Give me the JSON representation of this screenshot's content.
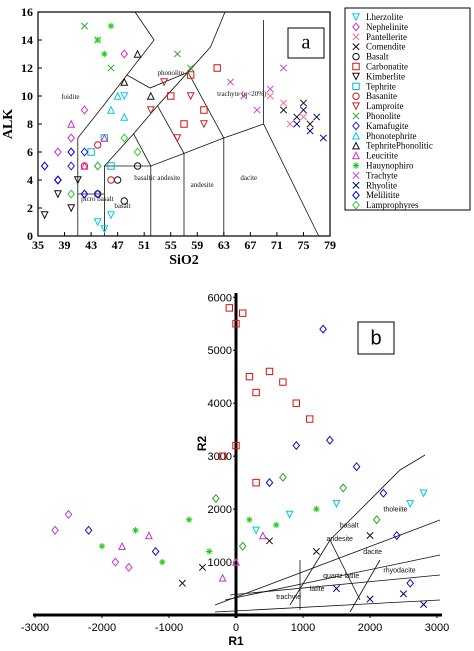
{
  "chart_data": [
    {
      "type": "scatter",
      "panel_label": "a",
      "xlabel": "SiO2",
      "ylabel": "ALK",
      "xlim": [
        35,
        79
      ],
      "ylim": [
        0,
        16
      ],
      "xticks": [
        35,
        39,
        43,
        47,
        51,
        55,
        59,
        63,
        67,
        71,
        75,
        79
      ],
      "yticks": [
        0,
        2,
        4,
        6,
        8,
        10,
        12,
        14,
        16
      ],
      "legend": "right",
      "annotations": [
        {
          "text": "foidite",
          "x": 38.5,
          "y": 9.8
        },
        {
          "text": "phonolite",
          "x": 53,
          "y": 11.5
        },
        {
          "text": "trachyte (q<20%)",
          "x": 62,
          "y": 10
        },
        {
          "text": "basaltic andesite",
          "x": 49.5,
          "y": 4
        },
        {
          "text": "andesite",
          "x": 58,
          "y": 3.5
        },
        {
          "text": "dacite",
          "x": 65.5,
          "y": 4
        },
        {
          "text": "basalt",
          "x": 46.5,
          "y": 2
        },
        {
          "text": "picro basalt",
          "x": 41.5,
          "y": 2.5
        }
      ],
      "series": [
        {
          "name": "Lherzolite",
          "color": "#00c8e6",
          "marker": "tri-down",
          "x": [
            44,
            45,
            46,
            48
          ],
          "values": [
            1,
            0.5,
            1.5,
            10
          ]
        },
        {
          "name": "Nephelinite",
          "color": "#cc33cc",
          "marker": "diamond",
          "x": [
            38,
            40,
            42,
            44,
            48
          ],
          "values": [
            6,
            7,
            9,
            5,
            13
          ]
        },
        {
          "name": "Pantellerite",
          "color": "#ff6699",
          "marker": "x",
          "x": [
            70,
            72,
            73,
            75
          ],
          "values": [
            10,
            9.5,
            8,
            8.5
          ]
        },
        {
          "name": "Comendite",
          "color": "#111111",
          "marker": "x",
          "x": [
            72,
            74,
            75,
            76
          ],
          "values": [
            9,
            8.5,
            9.5,
            8
          ]
        },
        {
          "name": "Basalt",
          "color": "#111111",
          "marker": "circle",
          "x": [
            44,
            47,
            48,
            50
          ],
          "values": [
            3,
            4,
            2.5,
            5
          ]
        },
        {
          "name": "Carbonatite",
          "color": "#dd1111",
          "marker": "square",
          "x": [
            55,
            57,
            58,
            60,
            62
          ],
          "values": [
            10,
            8,
            11.5,
            9,
            12
          ]
        },
        {
          "name": "Kimberlite",
          "color": "#111111",
          "marker": "tri-down",
          "x": [
            36,
            38,
            40,
            41
          ],
          "values": [
            1.5,
            3,
            2,
            4
          ]
        },
        {
          "name": "Tephrite",
          "color": "#00bbbb",
          "marker": "square",
          "x": [
            43,
            45,
            46
          ],
          "values": [
            6,
            7,
            5
          ]
        },
        {
          "name": "Basanite",
          "color": "#dd1111",
          "marker": "circle",
          "x": [
            42,
            44,
            46
          ],
          "values": [
            5,
            6.5,
            4
          ]
        },
        {
          "name": "Lamproite",
          "color": "#cc2222",
          "marker": "tri-down",
          "x": [
            52,
            54,
            56,
            58,
            60
          ],
          "values": [
            9,
            11,
            7,
            10,
            8
          ]
        },
        {
          "name": "Phonolite",
          "color": "#22aa22",
          "marker": "x",
          "x": [
            42,
            44,
            46,
            56,
            58
          ],
          "values": [
            15,
            14,
            12,
            13,
            12
          ]
        },
        {
          "name": "Kamafugite",
          "color": "#2222cc",
          "marker": "diamond",
          "x": [
            38,
            40,
            42,
            44
          ],
          "values": [
            4,
            5,
            6,
            3
          ]
        },
        {
          "name": "Phonotephrite",
          "color": "#00c8e6",
          "marker": "tri-up",
          "x": [
            46,
            47,
            48
          ],
          "values": [
            9,
            10,
            8.5
          ]
        },
        {
          "name": "TephritePhonolitic",
          "color": "#111111",
          "marker": "tri-up",
          "x": [
            48,
            50,
            52
          ],
          "values": [
            11,
            13,
            10
          ]
        },
        {
          "name": "Leucitite",
          "color": "#cc33cc",
          "marker": "tri-up",
          "x": [
            40,
            42,
            45
          ],
          "values": [
            8,
            5,
            7
          ]
        },
        {
          "name": "Hauynophiro",
          "color": "#22cc22",
          "marker": "star",
          "x": [
            44,
            45,
            46
          ],
          "values": [
            14,
            13,
            15
          ]
        },
        {
          "name": "Trachyte",
          "color": "#cc44cc",
          "marker": "x",
          "x": [
            64,
            66,
            68,
            70,
            72
          ],
          "values": [
            11,
            10,
            9,
            10.5,
            12
          ]
        },
        {
          "name": "Rhyolite",
          "color": "#000080",
          "marker": "x",
          "x": [
            74,
            75,
            76,
            77,
            78
          ],
          "values": [
            8,
            9,
            7.5,
            8.5,
            7
          ]
        },
        {
          "name": "Melilitite",
          "color": "#0000cc",
          "marker": "diamond",
          "x": [
            36,
            38,
            40,
            42
          ],
          "values": [
            5,
            4,
            6,
            3
          ]
        },
        {
          "name": "Lamprophyres",
          "color": "#33cc33",
          "marker": "diamond",
          "x": [
            40,
            44,
            48,
            50
          ],
          "values": [
            3,
            5,
            7,
            6
          ]
        }
      ]
    },
    {
      "type": "scatter",
      "panel_label": "b",
      "xlabel": "R1",
      "ylabel": "R2",
      "xlim": [
        -3000,
        3000
      ],
      "ylim": [
        0,
        6100
      ],
      "xticks": [
        -3000,
        -2000,
        -1000,
        0,
        1000,
        2000,
        3000
      ],
      "yticks": [
        1000,
        2000,
        3000,
        4000,
        5000,
        6000
      ],
      "annotations": [
        {
          "text": "rhyodacite",
          "x": 2200,
          "y": 800
        },
        {
          "text": "dacite",
          "x": 1900,
          "y": 1150
        },
        {
          "text": "andesite",
          "x": 1350,
          "y": 1400
        },
        {
          "text": "quartz latite",
          "x": 1300,
          "y": 700
        },
        {
          "text": "latite",
          "x": 1100,
          "y": 450
        },
        {
          "text": "trachyte",
          "x": 600,
          "y": 300
        },
        {
          "text": "tholeiite",
          "x": 2200,
          "y": 1950
        },
        {
          "text": "basalt",
          "x": 1550,
          "y": 1650
        }
      ],
      "series": [
        {
          "color": "#dd1111",
          "marker": "square",
          "x": [
            -100,
            0,
            100,
            200,
            300,
            500,
            700,
            900,
            1100,
            0,
            300,
            -200
          ],
          "values": [
            5800,
            5500,
            5700,
            4500,
            4200,
            4600,
            4400,
            4000,
            3700,
            3200,
            2500,
            3000
          ]
        },
        {
          "color": "#1111bb",
          "marker": "diamond",
          "x": [
            -2200,
            -1200,
            500,
            900,
            1300,
            1800,
            2200,
            2400,
            2600,
            1400
          ],
          "values": [
            1600,
            1200,
            2500,
            3200,
            5400,
            2800,
            2300,
            1500,
            600,
            3300
          ]
        },
        {
          "color": "#22cc22",
          "marker": "star",
          "x": [
            -2000,
            -1500,
            -1100,
            -700,
            -400,
            200,
            600,
            1200
          ],
          "values": [
            1300,
            1600,
            1000,
            1800,
            1200,
            1800,
            1700,
            2000
          ]
        },
        {
          "color": "#cc33cc",
          "marker": "diamond",
          "x": [
            -2700,
            -2500,
            -1800,
            -1600
          ],
          "values": [
            1600,
            1900,
            1000,
            900
          ]
        },
        {
          "color": "#cc33cc",
          "marker": "tri-up",
          "x": [
            -1700,
            -1300,
            -200,
            0,
            400
          ],
          "values": [
            1300,
            1500,
            700,
            1000,
            1500
          ]
        },
        {
          "color": "#111111",
          "marker": "x",
          "x": [
            -800,
            -500,
            500,
            1200,
            2000
          ],
          "values": [
            600,
            900,
            1400,
            1200,
            1500
          ]
        },
        {
          "color": "#00c8e6",
          "marker": "tri-down",
          "x": [
            300,
            800,
            1500,
            2600,
            2800
          ],
          "values": [
            1600,
            1900,
            2100,
            2100,
            2300
          ]
        },
        {
          "color": "#000080",
          "marker": "x",
          "x": [
            1500,
            2000,
            2500,
            2800
          ],
          "values": [
            500,
            300,
            400,
            200
          ]
        },
        {
          "color": "#22aa22",
          "marker": "diamond",
          "x": [
            -300,
            100,
            700,
            1600,
            2100
          ],
          "values": [
            2200,
            1300,
            2600,
            2400,
            1800
          ]
        }
      ]
    }
  ]
}
